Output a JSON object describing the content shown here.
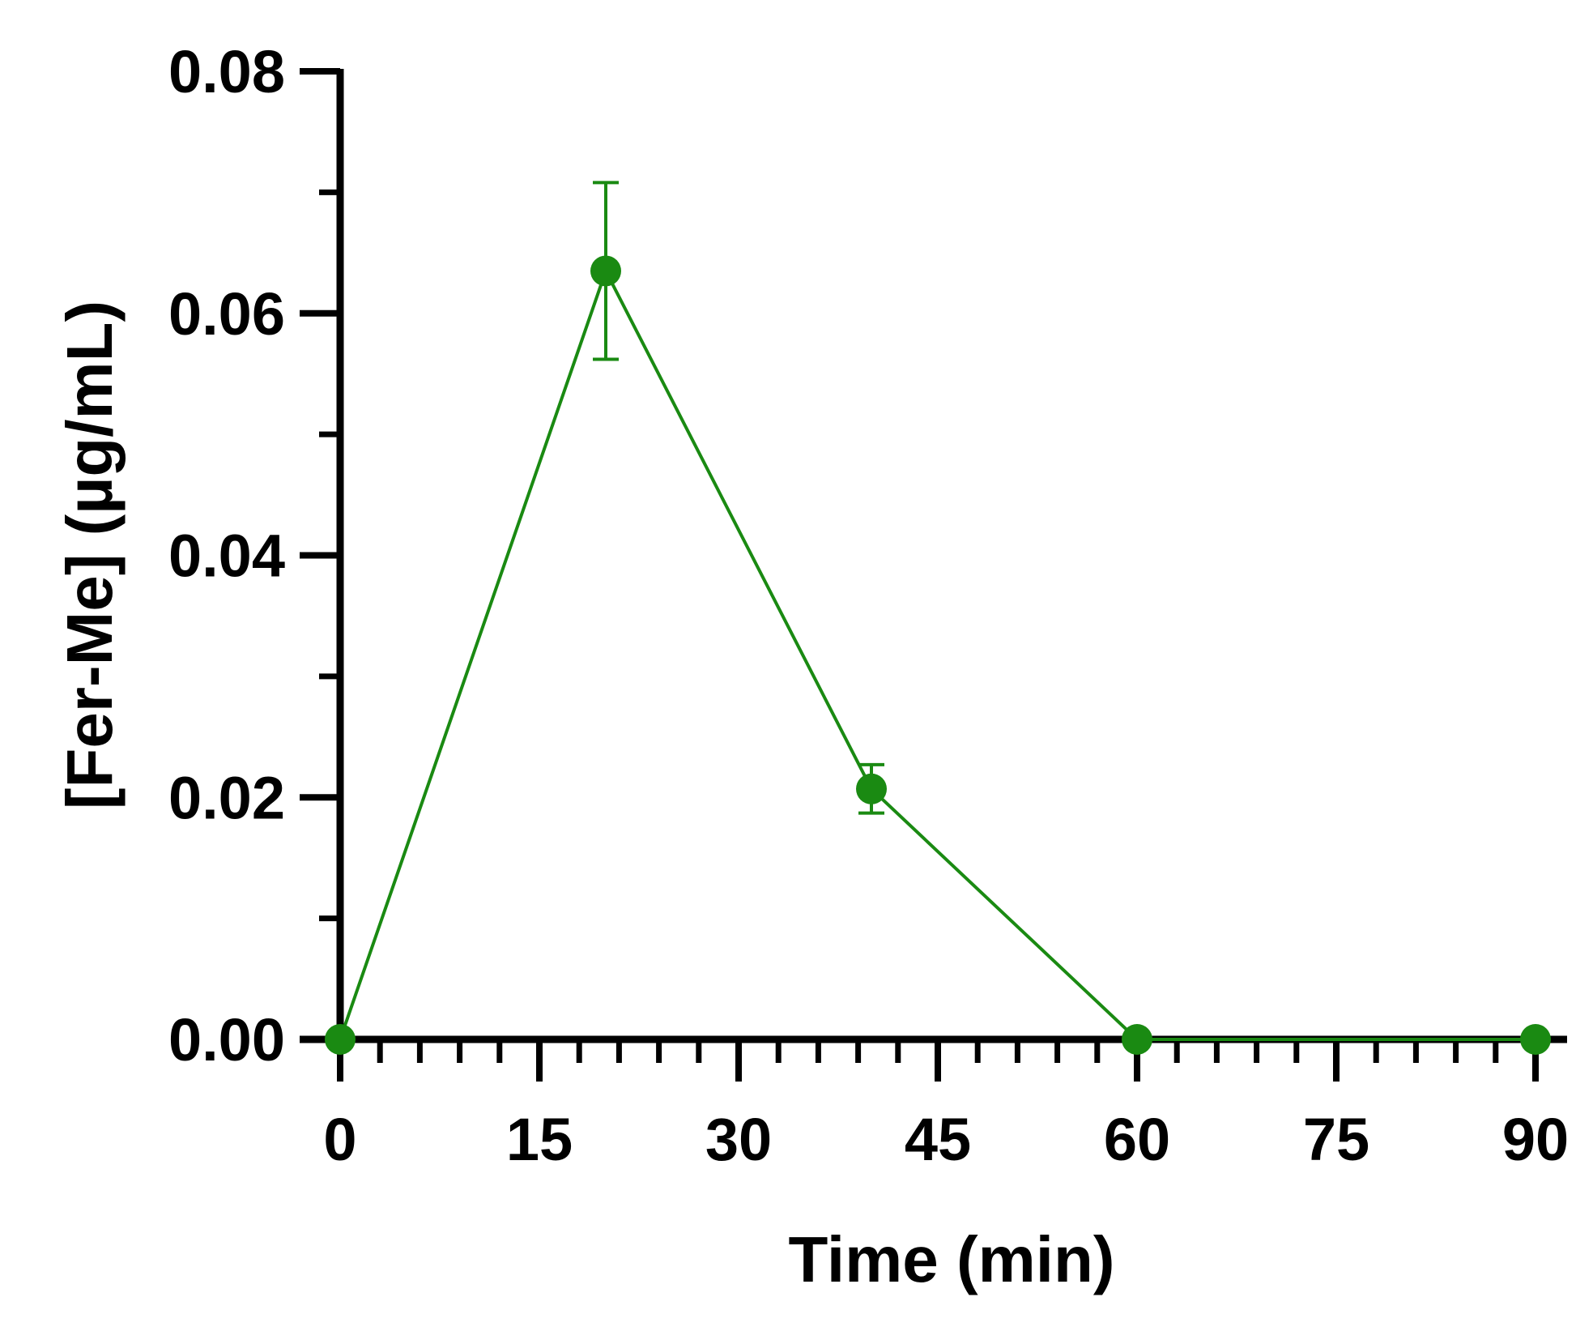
{
  "chart_data": {
    "type": "line",
    "title": "",
    "xlabel": "Time (min)",
    "ylabel": "[Fer-Me] (µg/mL)",
    "xlim": [
      0,
      90
    ],
    "ylim": [
      0,
      0.08
    ],
    "x_ticks": [
      "0",
      "15",
      "30",
      "45",
      "60",
      "75",
      "90"
    ],
    "y_ticks": [
      "0.00",
      "0.02",
      "0.04",
      "0.06",
      "0.08"
    ],
    "grid": false,
    "legend": "none",
    "series": [
      {
        "color": "#1a8a12",
        "x": [
          0,
          20,
          40,
          60,
          90
        ],
        "y": [
          0.0,
          0.0635,
          0.0207,
          0.0,
          0.0
        ],
        "error": [
          0.0,
          0.0073,
          0.002,
          0.0,
          0.0
        ]
      }
    ]
  }
}
